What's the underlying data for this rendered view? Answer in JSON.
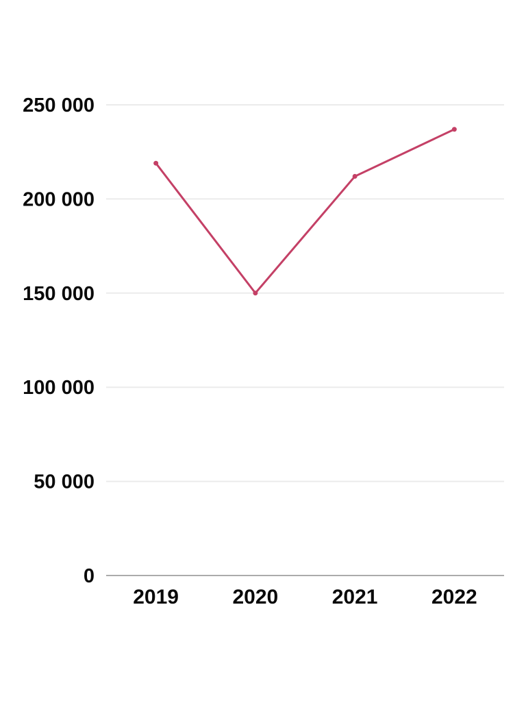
{
  "page": {
    "background_color": "#ffffff"
  },
  "chart_data": {
    "type": "line",
    "categories": [
      "2019",
      "2020",
      "2021",
      "2022"
    ],
    "values": [
      219000,
      150000,
      212000,
      237000
    ],
    "title": "",
    "xlabel": "",
    "ylabel": "",
    "ylim": [
      0,
      250000
    ],
    "ytick_step": 50000,
    "ytick_labels": [
      "0",
      "50 000",
      "100 000",
      "150 000",
      "200 000",
      "250 000"
    ],
    "grid": true,
    "legend": false,
    "marker": "circle",
    "line_color": "#c44066",
    "marker_color": "#c44066",
    "gridline_color": "#ebebeb",
    "axis_line_color": "#ababab",
    "tick_label_color": "#0a0a0a"
  }
}
